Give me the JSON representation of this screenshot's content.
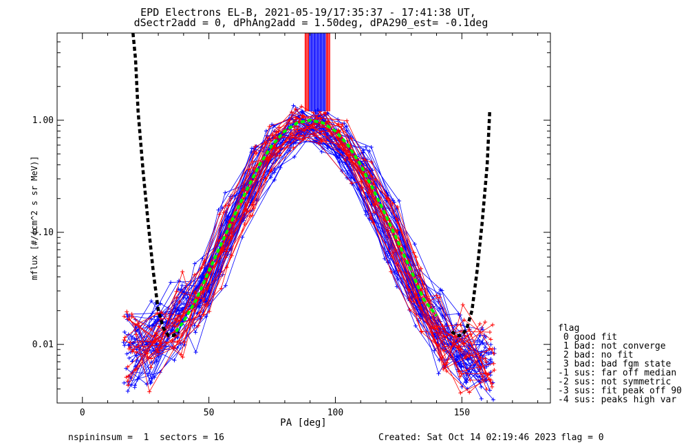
{
  "chart_data": {
    "type": "line",
    "title": "EPD Electrons EL-B, 2021-05-19/17:35:37 - 17:41:38 UT,",
    "subtitle": "dSectr2add = 0, dPhAng2add = 1.50deg, dPA290_est=  -0.1deg",
    "xlabel": "PA [deg]",
    "ylabel": "mflux [#/(cm^2 s sr MeV)]",
    "xlim": [
      -10,
      185
    ],
    "ylim": [
      0.003,
      6
    ],
    "yscale": "log",
    "x_ticks": [
      0,
      50,
      100,
      150
    ],
    "x_tick_labels": [
      "0",
      "50",
      "100",
      "150"
    ],
    "y_ticks": [
      0.01,
      0.1,
      1.0
    ],
    "y_tick_labels": [
      "0.01",
      "0.10",
      "1.00"
    ],
    "grid": false,
    "legend_position": "right",
    "legend": {
      "header": "flag",
      "entries": [
        " 0 good fit",
        " 1 bad: not converge",
        " 2 bad: no fit",
        " 3 bad: bad fgm state",
        "-1 sus: far off median",
        "-2 sus: not symmetric",
        "-3 sus: fit peak off 90",
        "-4 sus: peaks high var"
      ]
    },
    "colors": {
      "red_series": "#ff0000",
      "blue_series": "#0000ff",
      "loss_cone": "#000000",
      "median_fit": "#00ff00"
    },
    "measured_profile_template": {
      "pa": [
        20,
        30,
        40,
        50,
        60,
        70,
        80,
        85,
        90,
        95,
        100,
        110,
        120,
        130,
        140,
        150,
        160
      ],
      "flux": [
        0.009,
        0.011,
        0.016,
        0.035,
        0.14,
        0.38,
        0.75,
        0.9,
        0.95,
        0.9,
        0.75,
        0.38,
        0.14,
        0.035,
        0.013,
        0.008,
        0.007
      ]
    },
    "loss_cone_curve": {
      "pa": [
        20,
        21,
        22,
        24,
        26,
        28,
        30,
        32,
        34,
        36,
        38,
        146,
        148,
        150,
        152,
        154,
        156,
        158,
        160,
        161
      ],
      "flux": [
        6,
        3.5,
        1.2,
        0.35,
        0.12,
        0.045,
        0.02,
        0.014,
        0.012,
        0.012,
        0.013,
        0.013,
        0.012,
        0.012,
        0.014,
        0.02,
        0.045,
        0.12,
        0.4,
        1.2
      ]
    },
    "median_fit_curve": {
      "pa": [
        37,
        40,
        45,
        50,
        55,
        60,
        65,
        70,
        75,
        80,
        85,
        90,
        95,
        100,
        105,
        110,
        115,
        120,
        125,
        130,
        135,
        140
      ],
      "flux": [
        0.013,
        0.016,
        0.025,
        0.045,
        0.08,
        0.14,
        0.24,
        0.4,
        0.6,
        0.8,
        0.95,
        1.0,
        0.95,
        0.8,
        0.6,
        0.4,
        0.24,
        0.14,
        0.08,
        0.045,
        0.025,
        0.018
      ]
    },
    "spikes": {
      "pa_range": [
        88,
        98
      ],
      "flux_from": 1.2
    }
  },
  "footer": {
    "left": "nspininsum =  1  sectors = 16",
    "created": "Created: Sat Oct 14 02:19:46 2023",
    "flag": "flag = 0"
  }
}
